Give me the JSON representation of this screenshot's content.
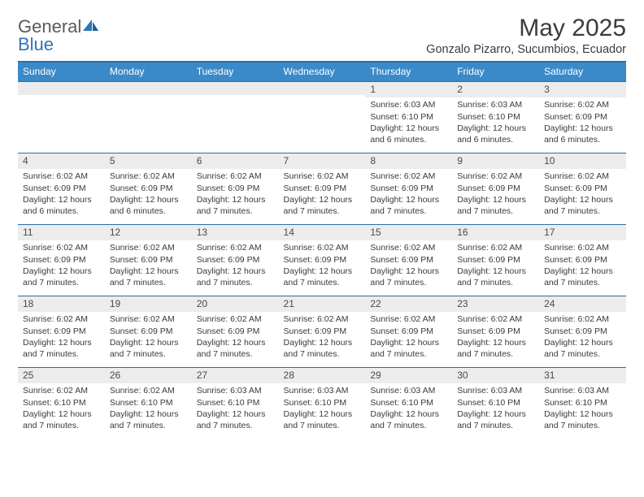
{
  "brand": {
    "part1": "General",
    "part2": "Blue"
  },
  "title": {
    "month": "May 2025",
    "location": "Gonzalo Pizarro, Sucumbios, Ecuador"
  },
  "colors": {
    "header_bg": "#3a8ac9",
    "header_border": "#2e6da4",
    "daynum_bg": "#ececec",
    "text": "#3a3a3a",
    "brand_gray": "#5a5a5a",
    "brand_blue": "#2e75b6"
  },
  "weekdays": [
    "Sunday",
    "Monday",
    "Tuesday",
    "Wednesday",
    "Thursday",
    "Friday",
    "Saturday"
  ],
  "weeks": [
    [
      {
        "n": "",
        "lines": []
      },
      {
        "n": "",
        "lines": []
      },
      {
        "n": "",
        "lines": []
      },
      {
        "n": "",
        "lines": []
      },
      {
        "n": "1",
        "lines": [
          "Sunrise: 6:03 AM",
          "Sunset: 6:10 PM",
          "Daylight: 12 hours and 6 minutes."
        ]
      },
      {
        "n": "2",
        "lines": [
          "Sunrise: 6:03 AM",
          "Sunset: 6:10 PM",
          "Daylight: 12 hours and 6 minutes."
        ]
      },
      {
        "n": "3",
        "lines": [
          "Sunrise: 6:02 AM",
          "Sunset: 6:09 PM",
          "Daylight: 12 hours and 6 minutes."
        ]
      }
    ],
    [
      {
        "n": "4",
        "lines": [
          "Sunrise: 6:02 AM",
          "Sunset: 6:09 PM",
          "Daylight: 12 hours and 6 minutes."
        ]
      },
      {
        "n": "5",
        "lines": [
          "Sunrise: 6:02 AM",
          "Sunset: 6:09 PM",
          "Daylight: 12 hours and 6 minutes."
        ]
      },
      {
        "n": "6",
        "lines": [
          "Sunrise: 6:02 AM",
          "Sunset: 6:09 PM",
          "Daylight: 12 hours and 7 minutes."
        ]
      },
      {
        "n": "7",
        "lines": [
          "Sunrise: 6:02 AM",
          "Sunset: 6:09 PM",
          "Daylight: 12 hours and 7 minutes."
        ]
      },
      {
        "n": "8",
        "lines": [
          "Sunrise: 6:02 AM",
          "Sunset: 6:09 PM",
          "Daylight: 12 hours and 7 minutes."
        ]
      },
      {
        "n": "9",
        "lines": [
          "Sunrise: 6:02 AM",
          "Sunset: 6:09 PM",
          "Daylight: 12 hours and 7 minutes."
        ]
      },
      {
        "n": "10",
        "lines": [
          "Sunrise: 6:02 AM",
          "Sunset: 6:09 PM",
          "Daylight: 12 hours and 7 minutes."
        ]
      }
    ],
    [
      {
        "n": "11",
        "lines": [
          "Sunrise: 6:02 AM",
          "Sunset: 6:09 PM",
          "Daylight: 12 hours and 7 minutes."
        ]
      },
      {
        "n": "12",
        "lines": [
          "Sunrise: 6:02 AM",
          "Sunset: 6:09 PM",
          "Daylight: 12 hours and 7 minutes."
        ]
      },
      {
        "n": "13",
        "lines": [
          "Sunrise: 6:02 AM",
          "Sunset: 6:09 PM",
          "Daylight: 12 hours and 7 minutes."
        ]
      },
      {
        "n": "14",
        "lines": [
          "Sunrise: 6:02 AM",
          "Sunset: 6:09 PM",
          "Daylight: 12 hours and 7 minutes."
        ]
      },
      {
        "n": "15",
        "lines": [
          "Sunrise: 6:02 AM",
          "Sunset: 6:09 PM",
          "Daylight: 12 hours and 7 minutes."
        ]
      },
      {
        "n": "16",
        "lines": [
          "Sunrise: 6:02 AM",
          "Sunset: 6:09 PM",
          "Daylight: 12 hours and 7 minutes."
        ]
      },
      {
        "n": "17",
        "lines": [
          "Sunrise: 6:02 AM",
          "Sunset: 6:09 PM",
          "Daylight: 12 hours and 7 minutes."
        ]
      }
    ],
    [
      {
        "n": "18",
        "lines": [
          "Sunrise: 6:02 AM",
          "Sunset: 6:09 PM",
          "Daylight: 12 hours and 7 minutes."
        ]
      },
      {
        "n": "19",
        "lines": [
          "Sunrise: 6:02 AM",
          "Sunset: 6:09 PM",
          "Daylight: 12 hours and 7 minutes."
        ]
      },
      {
        "n": "20",
        "lines": [
          "Sunrise: 6:02 AM",
          "Sunset: 6:09 PM",
          "Daylight: 12 hours and 7 minutes."
        ]
      },
      {
        "n": "21",
        "lines": [
          "Sunrise: 6:02 AM",
          "Sunset: 6:09 PM",
          "Daylight: 12 hours and 7 minutes."
        ]
      },
      {
        "n": "22",
        "lines": [
          "Sunrise: 6:02 AM",
          "Sunset: 6:09 PM",
          "Daylight: 12 hours and 7 minutes."
        ]
      },
      {
        "n": "23",
        "lines": [
          "Sunrise: 6:02 AM",
          "Sunset: 6:09 PM",
          "Daylight: 12 hours and 7 minutes."
        ]
      },
      {
        "n": "24",
        "lines": [
          "Sunrise: 6:02 AM",
          "Sunset: 6:09 PM",
          "Daylight: 12 hours and 7 minutes."
        ]
      }
    ],
    [
      {
        "n": "25",
        "lines": [
          "Sunrise: 6:02 AM",
          "Sunset: 6:10 PM",
          "Daylight: 12 hours and 7 minutes."
        ]
      },
      {
        "n": "26",
        "lines": [
          "Sunrise: 6:02 AM",
          "Sunset: 6:10 PM",
          "Daylight: 12 hours and 7 minutes."
        ]
      },
      {
        "n": "27",
        "lines": [
          "Sunrise: 6:03 AM",
          "Sunset: 6:10 PM",
          "Daylight: 12 hours and 7 minutes."
        ]
      },
      {
        "n": "28",
        "lines": [
          "Sunrise: 6:03 AM",
          "Sunset: 6:10 PM",
          "Daylight: 12 hours and 7 minutes."
        ]
      },
      {
        "n": "29",
        "lines": [
          "Sunrise: 6:03 AM",
          "Sunset: 6:10 PM",
          "Daylight: 12 hours and 7 minutes."
        ]
      },
      {
        "n": "30",
        "lines": [
          "Sunrise: 6:03 AM",
          "Sunset: 6:10 PM",
          "Daylight: 12 hours and 7 minutes."
        ]
      },
      {
        "n": "31",
        "lines": [
          "Sunrise: 6:03 AM",
          "Sunset: 6:10 PM",
          "Daylight: 12 hours and 7 minutes."
        ]
      }
    ]
  ]
}
